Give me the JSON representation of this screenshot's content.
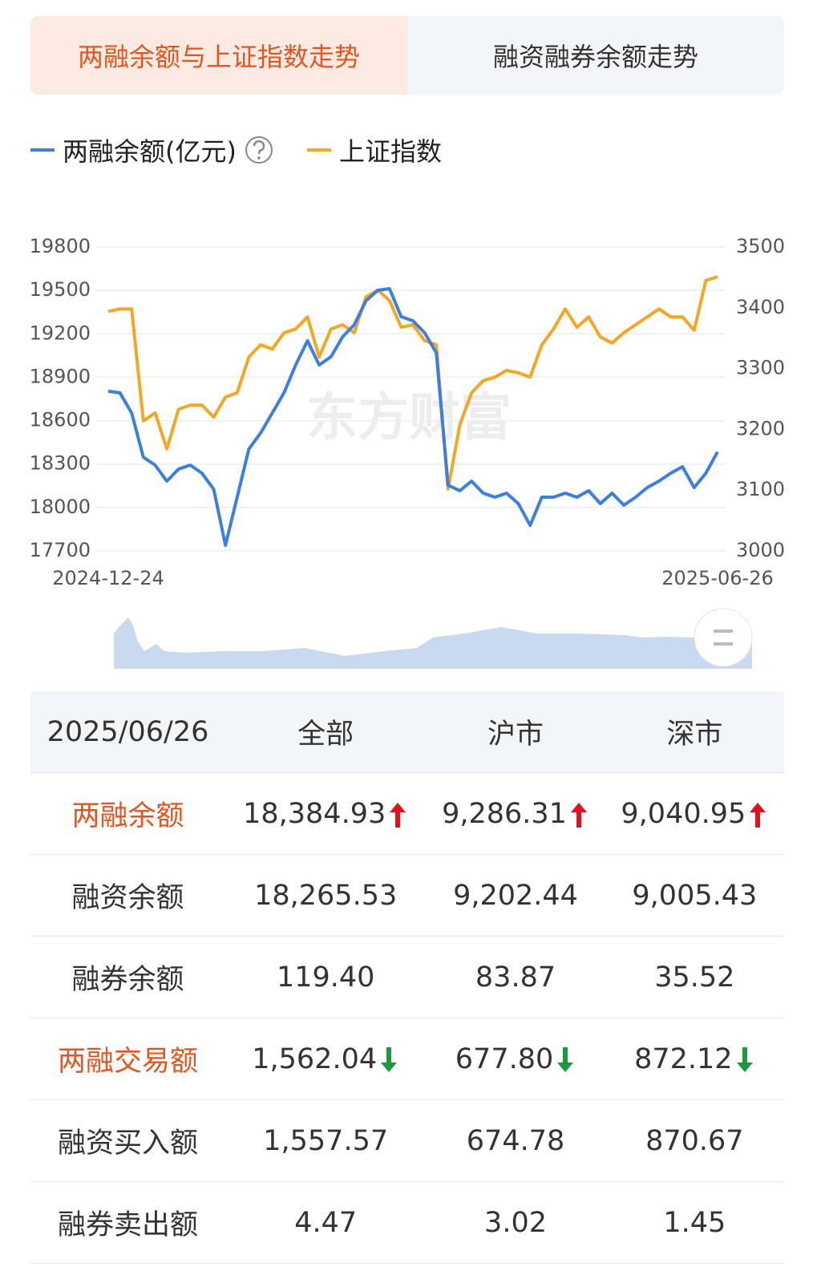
{
  "tabs": [
    "两融余额与上证指数走势",
    "融资融券余额走势"
  ],
  "chart_data": {
    "type": "line",
    "watermark": "东方财富",
    "x": [
      "2024-12-24",
      null,
      null,
      null,
      null,
      null,
      null,
      null,
      null,
      null,
      null,
      null,
      null,
      null,
      null,
      null,
      null,
      null,
      null,
      null,
      null,
      null,
      null,
      null,
      null,
      null,
      null,
      null,
      null,
      null,
      null,
      null,
      null,
      null,
      null,
      null,
      null,
      null,
      null,
      null,
      null,
      null,
      null,
      null,
      null,
      null,
      null,
      null,
      null,
      null,
      null,
      null,
      "2025-06-26"
    ],
    "series": [
      {
        "name": "两融余额(亿元)",
        "color": "#3b7fe0",
        "values": [
          18803,
          18792,
          18653,
          18348,
          18293,
          18182,
          18265,
          18293,
          18237,
          18127,
          17739,
          18071,
          18404,
          18514,
          18653,
          18792,
          18985,
          19152,
          18985,
          19041,
          19179,
          19263,
          19429,
          19501,
          19512,
          19318,
          19290,
          19207,
          19069,
          18154,
          18116,
          18182,
          18099,
          18071,
          18099,
          18027,
          17877,
          18071,
          18071,
          18099,
          18071,
          18116,
          18027,
          18099,
          18016,
          18071,
          18138,
          18182,
          18237,
          18282,
          18138,
          18237,
          18385
        ]
      },
      {
        "name": "上证指数",
        "color": "#f5a623",
        "axis": "y2",
        "values": [
          3394,
          3398,
          3398,
          3214,
          3227,
          3168,
          3233,
          3240,
          3240,
          3220,
          3253,
          3260,
          3319,
          3339,
          3332,
          3359,
          3365,
          3385,
          3319,
          3365,
          3372,
          3359,
          3418,
          3429,
          3412,
          3368,
          3372,
          3346,
          3339,
          3102,
          3207,
          3260,
          3280,
          3286,
          3297,
          3293,
          3286,
          3339,
          3365,
          3398,
          3368,
          3385,
          3352,
          3342,
          3359,
          3372,
          3385,
          3398,
          3385,
          3385,
          3363,
          3445,
          3451
        ]
      }
    ],
    "ylim": [
      17700,
      19800
    ],
    "yticks": [
      17700,
      18000,
      18300,
      18600,
      18900,
      19200,
      19500,
      19800
    ],
    "y2lim": [
      3000,
      3500
    ],
    "y2ticks": [
      3000,
      3100,
      3200,
      3300,
      3400,
      3500
    ],
    "grid": true
  },
  "table": {
    "header": [
      "2025/06/26",
      "全部",
      "沪市",
      "深市"
    ],
    "rows": [
      [
        "两融余额",
        "18,384.93",
        "9,286.31",
        "9,040.95"
      ],
      [
        "融资余额",
        "18,265.53",
        "9,202.44",
        "9,005.43"
      ],
      [
        "融券余额",
        "119.40",
        "83.87",
        "35.52"
      ],
      [
        "两融交易额",
        "1,562.04",
        "677.80",
        "872.12"
      ],
      [
        "融资买入额",
        "1,557.57",
        "674.78",
        "870.67"
      ],
      [
        "融券卖出额",
        "4.47",
        "3.02",
        "1.45"
      ]
    ]
  }
}
